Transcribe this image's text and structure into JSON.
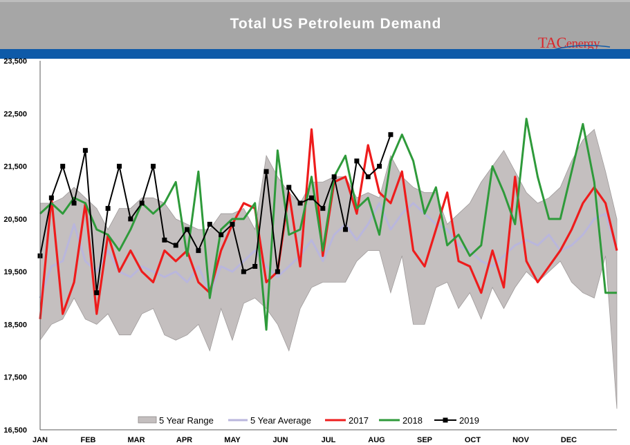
{
  "header": {
    "title": "Total US Petroleum Demand",
    "logo": {
      "brand": "TAC",
      "tail": "energy"
    }
  },
  "colors": {
    "header_bg": "#a6a6a6",
    "stripe": "#0e5aa8",
    "range_fill": "#c4bfbf",
    "avg": "#b9b6dc",
    "y2017": "#ee1c1c",
    "y2018": "#2e9a3a",
    "y2019": "#000000"
  },
  "chart_data": {
    "type": "line",
    "title": "Total US Petroleum Demand",
    "xlabel": "",
    "ylabel": "",
    "ylim": [
      16500,
      23500
    ],
    "yticks": [
      "16,500",
      "17,500",
      "18,500",
      "19,500",
      "20,500",
      "21,500",
      "22,500",
      "23,500"
    ],
    "ytick_values": [
      16500,
      17500,
      18500,
      19500,
      20500,
      21500,
      22500,
      23500
    ],
    "x_weeks": 52,
    "months": [
      "JAN",
      "FEB",
      "MAR",
      "APR",
      "MAY",
      "JUN",
      "JUL",
      "AUG",
      "SEP",
      "OCT",
      "NOV",
      "DEC"
    ],
    "legend_position": "bottom",
    "legend": [
      "5 Year Range",
      "5 Year Average",
      "2017",
      "2018",
      "2019"
    ],
    "range_low": [
      18200,
      18500,
      18600,
      19000,
      18600,
      18500,
      18700,
      18300,
      18300,
      18700,
      18800,
      18300,
      18200,
      18300,
      18500,
      18000,
      18800,
      18200,
      18900,
      19000,
      18800,
      18500,
      18000,
      18800,
      19200,
      19300,
      19300,
      19300,
      19700,
      19900,
      19900,
      19100,
      19800,
      18500,
      18500,
      19200,
      19300,
      18800,
      19100,
      18600,
      19200,
      18800,
      19200,
      19500,
      19300,
      19500,
      19700,
      19300,
      19100,
      19000,
      19800,
      16900
    ],
    "range_high": [
      20800,
      20800,
      20900,
      21100,
      20900,
      20700,
      20300,
      20700,
      20700,
      20900,
      20900,
      20800,
      20500,
      20400,
      20300,
      20300,
      20600,
      20600,
      20700,
      20300,
      21700,
      21300,
      21000,
      20800,
      21200,
      21200,
      21300,
      21300,
      20900,
      21000,
      20900,
      21700,
      21300,
      21100,
      21000,
      21000,
      20400,
      20600,
      20800,
      21200,
      21500,
      21800,
      21400,
      21000,
      20800,
      20900,
      21100,
      21600,
      22000,
      22200,
      21400,
      20500
    ],
    "avg_5yr": [
      19000,
      19600,
      19700,
      20400,
      19700,
      19500,
      19900,
      19500,
      19400,
      19600,
      19500,
      19400,
      19500,
      19300,
      19600,
      19100,
      19600,
      19500,
      19700,
      19900,
      19600,
      19400,
      19600,
      19800,
      20100,
      19700,
      20200,
      20400,
      20100,
      20400,
      20800,
      20300,
      20600,
      20800,
      20600,
      20400,
      20300,
      20000,
      19900,
      19700,
      19600,
      19800,
      20000,
      20100,
      20000,
      20200,
      19900,
      20000,
      20200,
      20500,
      20600,
      19900
    ],
    "series": [
      {
        "name": "2017",
        "values": [
          18600,
          20900,
          18700,
          19300,
          20800,
          18700,
          20200,
          19500,
          19900,
          19500,
          19300,
          19900,
          19700,
          19900,
          19300,
          19100,
          19900,
          20400,
          20800,
          20700,
          19300,
          19500,
          21000,
          19600,
          22200,
          19800,
          21200,
          21300,
          20600,
          21900,
          21000,
          20800,
          21400,
          19900,
          19600,
          20300,
          21000,
          19700,
          19600,
          19100,
          19900,
          19200,
          21300,
          19700,
          19300,
          19600,
          19900,
          20300,
          20800,
          21100,
          20800,
          19900
        ]
      },
      {
        "name": "2018",
        "values": [
          20600,
          20800,
          20600,
          20900,
          20800,
          20300,
          20200,
          19900,
          20300,
          20800,
          20600,
          20800,
          21200,
          19800,
          21400,
          19000,
          20300,
          20500,
          20500,
          20800,
          18400,
          21800,
          20200,
          20300,
          21300,
          19900,
          21300,
          21700,
          20700,
          20900,
          20200,
          21600,
          22100,
          21600,
          20600,
          21100,
          20000,
          20200,
          19800,
          20000,
          21500,
          21000,
          20400,
          22400,
          21300,
          20500,
          20500,
          21400,
          22300,
          21200,
          19100,
          19100
        ]
      },
      {
        "name": "2019",
        "values": [
          19800,
          20900,
          21500,
          20800,
          21800,
          19100,
          20700,
          21500,
          20500,
          20800,
          21500,
          20100,
          20000,
          20300,
          19900,
          20400,
          20200,
          20400,
          19500,
          19600,
          21400,
          19500,
          21100,
          20800,
          20900,
          20700,
          21300,
          20300,
          21600,
          21300,
          21500,
          22100
        ]
      }
    ]
  }
}
